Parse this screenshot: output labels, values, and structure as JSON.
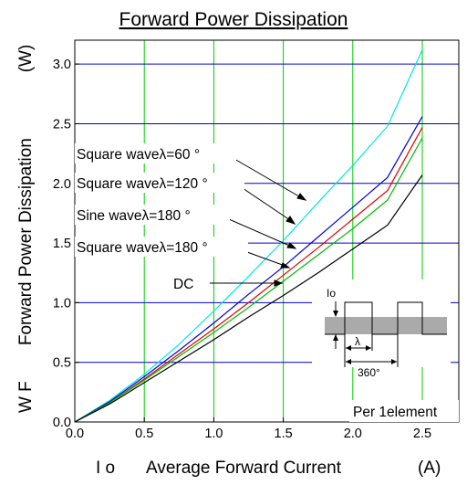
{
  "chart_data": {
    "type": "line",
    "title": "Forward Power Dissipation",
    "xlabel": {
      "symbol": "I o",
      "text": "Average Forward Current",
      "unit": "(A)"
    },
    "ylabel": {
      "symbol": "W F",
      "text": "Forward Power Dissipation",
      "unit": "(W)"
    },
    "xlim": [
      0,
      2.5
    ],
    "ylim": [
      0,
      3.2
    ],
    "xticks": [
      0,
      0.5,
      1.0,
      1.5,
      2.0,
      2.5
    ],
    "xtick_labels": [
      "0.0",
      "0.5",
      "1.0",
      "1.5",
      "2.0",
      "2.5"
    ],
    "yticks": [
      0,
      0.5,
      1.0,
      1.5,
      2.0,
      2.5,
      3.0
    ],
    "ytick_labels": [
      "0.0",
      "0.5",
      "1.0",
      "1.5",
      "2.0",
      "2.5",
      "3.0"
    ],
    "grid": true,
    "grid_colors": {
      "vertical": "#00cc00",
      "horizontal": "#0000cc"
    },
    "series": [
      {
        "name": "Square waveλ=60 °",
        "color": "#00e5e5",
        "x": [
          0,
          0.25,
          0.5,
          0.75,
          1.0,
          1.25,
          1.5,
          1.75,
          2.0,
          2.25,
          2.5
        ],
        "y": [
          0,
          0.18,
          0.4,
          0.65,
          0.93,
          1.22,
          1.52,
          1.84,
          2.15,
          2.48,
          3.12
        ]
      },
      {
        "name": "Square waveλ=120 °",
        "color": "#0000dd",
        "x": [
          0,
          0.25,
          0.5,
          0.75,
          1.0,
          1.25,
          1.5,
          1.75,
          2.0,
          2.25,
          2.5
        ],
        "y": [
          0,
          0.17,
          0.38,
          0.6,
          0.83,
          1.07,
          1.3,
          1.55,
          1.8,
          2.05,
          2.56
        ]
      },
      {
        "name": "Sine waveλ=180 °",
        "color": "#dd0000",
        "x": [
          0,
          0.25,
          0.5,
          0.75,
          1.0,
          1.25,
          1.5,
          1.75,
          2.0,
          2.25,
          2.5
        ],
        "y": [
          0,
          0.16,
          0.36,
          0.57,
          0.78,
          1.0,
          1.23,
          1.46,
          1.7,
          1.94,
          2.47
        ]
      },
      {
        "name": "Square waveλ=180 °",
        "color": "#00bb00",
        "x": [
          0,
          0.25,
          0.5,
          0.75,
          1.0,
          1.25,
          1.5,
          1.75,
          2.0,
          2.25,
          2.5
        ],
        "y": [
          0,
          0.16,
          0.35,
          0.55,
          0.75,
          0.96,
          1.18,
          1.4,
          1.62,
          1.86,
          2.38
        ]
      },
      {
        "name": "DC",
        "color": "#000000",
        "x": [
          0,
          0.25,
          0.5,
          0.75,
          1.0,
          1.25,
          1.5,
          1.75,
          2.0,
          2.25,
          2.5
        ],
        "y": [
          0,
          0.15,
          0.33,
          0.51,
          0.69,
          0.88,
          1.06,
          1.25,
          1.45,
          1.65,
          2.07
        ]
      }
    ],
    "annotations": [
      {
        "text": "Square waveλ=60 °",
        "points_to": "Square waveλ=60 °"
      },
      {
        "text": "Square waveλ=120 °",
        "points_to": "Square waveλ=120 °"
      },
      {
        "text": "Sine waveλ=180 °",
        "points_to": "Sine waveλ=180 °"
      },
      {
        "text": "Square waveλ=180 °",
        "points_to": "Square waveλ=180 °"
      },
      {
        "text": "DC",
        "points_to": "DC"
      }
    ],
    "inset": {
      "io_label": "Io",
      "lambda_label": "λ",
      "period_label": "360°"
    },
    "note": "Per 1element"
  }
}
